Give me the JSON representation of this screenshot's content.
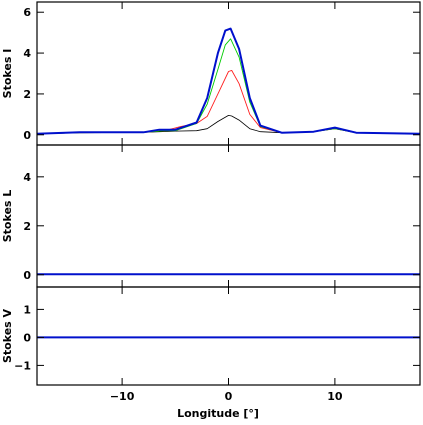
{
  "chart_data": {
    "type": "line",
    "xlabel": "Longitude [°]",
    "xlim": [
      -18,
      18
    ],
    "xticks": [
      -10,
      0,
      10
    ],
    "xtick_labels": [
      "−10",
      "0",
      "10"
    ],
    "grid": false,
    "panels": [
      {
        "ylabel": "Stokes I",
        "ylim": [
          -0.5,
          6.5
        ],
        "yticks": [
          0,
          2,
          4,
          6
        ],
        "ytick_labels": [
          "0",
          "2",
          "4",
          "6"
        ],
        "series": [
          {
            "color": "#000000",
            "width": 0.8,
            "x": [
              -18,
              -14,
              -8,
              -5,
              -3,
              -2,
              -1,
              0,
              0.3,
              1,
              2,
              3,
              5,
              8,
              10,
              12,
              18
            ],
            "y": [
              0.05,
              0.1,
              0.12,
              0.18,
              0.2,
              0.3,
              0.65,
              0.95,
              0.92,
              0.72,
              0.3,
              0.15,
              0.1,
              0.15,
              0.3,
              0.1,
              0.05
            ]
          },
          {
            "color": "#ff2020",
            "width": 0.9,
            "x": [
              -18,
              -14,
              -8,
              -6,
              -4.5,
              -3,
              -2,
              -1,
              0,
              0.3,
              1,
              2,
              3,
              5,
              8,
              10,
              12,
              18
            ],
            "y": [
              0.05,
              0.1,
              0.12,
              0.2,
              0.4,
              0.55,
              0.9,
              2.0,
              3.1,
              3.15,
              2.5,
              1.0,
              0.35,
              0.1,
              0.15,
              0.3,
              0.1,
              0.05
            ]
          },
          {
            "color": "#00cc00",
            "width": 0.9,
            "x": [
              -18,
              -14,
              -8,
              -6,
              -5,
              -3,
              -2,
              -1,
              -0.3,
              0.2,
              1,
              2,
              3,
              5,
              8,
              10,
              12,
              18
            ],
            "y": [
              0.05,
              0.1,
              0.12,
              0.2,
              0.2,
              0.55,
              1.5,
              3.2,
              4.4,
              4.7,
              3.8,
              1.6,
              0.4,
              0.1,
              0.15,
              0.3,
              0.1,
              0.05
            ]
          },
          {
            "color": "#0010cc",
            "width": 2,
            "x": [
              -18,
              -14,
              -8,
              -6.5,
              -5,
              -3,
              -2,
              -1,
              -0.3,
              0.2,
              1,
              2,
              3,
              5,
              8,
              10,
              12,
              18
            ],
            "y": [
              0.05,
              0.12,
              0.12,
              0.25,
              0.25,
              0.6,
              1.8,
              4.0,
              5.1,
              5.2,
              4.2,
              1.8,
              0.45,
              0.1,
              0.15,
              0.35,
              0.1,
              0.05
            ]
          }
        ]
      },
      {
        "ylabel": "Stokes L",
        "ylim": [
          -0.5,
          5.3
        ],
        "yticks": [
          0,
          2,
          4
        ],
        "ytick_labels": [
          "0",
          "2",
          "4"
        ],
        "series": [
          {
            "color": "#0010cc",
            "width": 2,
            "x": [
              -18,
              18
            ],
            "y": [
              0.02,
              0.02
            ]
          }
        ]
      },
      {
        "ylabel": "Stokes V",
        "ylim": [
          -1.7,
          1.8
        ],
        "yticks": [
          -1,
          0,
          1
        ],
        "ytick_labels": [
          "−1",
          "0",
          "1"
        ],
        "series": [
          {
            "color": "#0010cc",
            "width": 2,
            "x": [
              -18,
              18
            ],
            "y": [
              0.0,
              0.0
            ]
          }
        ]
      }
    ]
  }
}
